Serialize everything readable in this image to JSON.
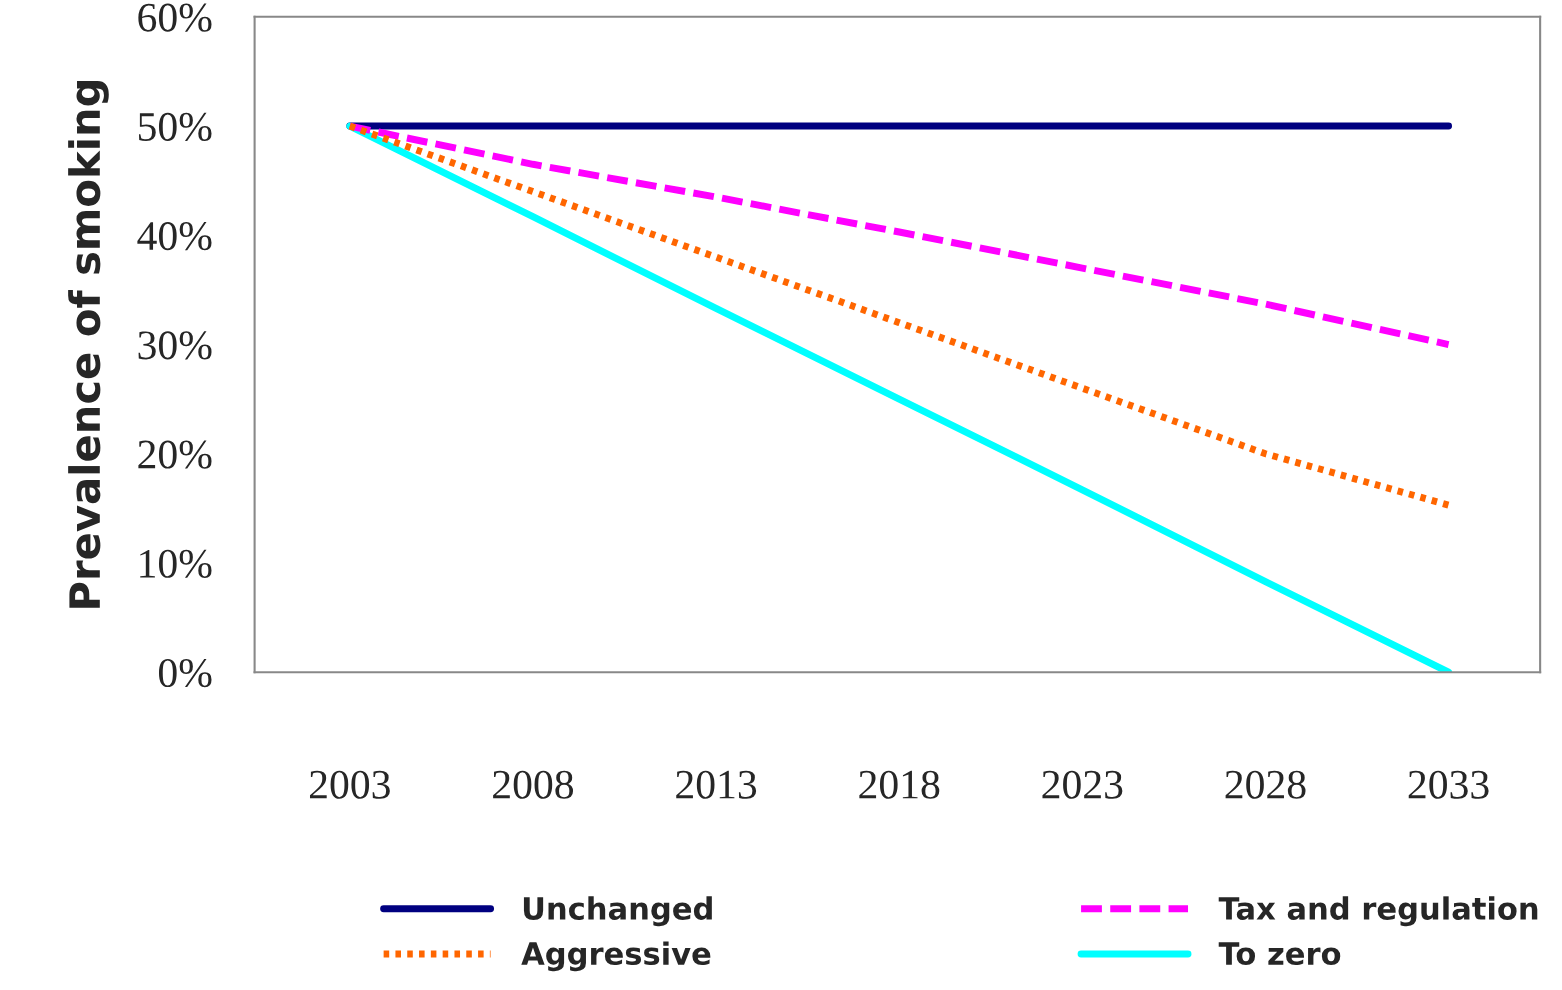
{
  "chart_data": {
    "type": "line",
    "ylabel": "Prevalence of smoking",
    "x": [
      2003,
      2008,
      2013,
      2018,
      2023,
      2028,
      2033
    ],
    "series": [
      {
        "name": "Unchanged",
        "color": "#000080",
        "line_style": "solid",
        "values": [
          50,
          50,
          50,
          50,
          50,
          50,
          50
        ]
      },
      {
        "name": "Aggressive",
        "color": "#ff6600",
        "line_style": "dotted",
        "values": [
          50,
          44,
          38,
          32,
          26,
          20,
          15.3
        ]
      },
      {
        "name": "Tax and regulation",
        "color": "#ff00ff",
        "line_style": "dashed",
        "values": [
          50,
          46.5,
          43.5,
          40.3,
          37,
          33.7,
          30
        ]
      },
      {
        "name": "To zero",
        "color": "#00ffff",
        "line_style": "solid",
        "values": [
          50,
          41.7,
          33.3,
          25,
          16.7,
          8.3,
          0
        ]
      }
    ],
    "xlim": [
      2000.4,
      2035.5
    ],
    "xticks": [
      2003,
      2008,
      2013,
      2018,
      2023,
      2028,
      2033
    ],
    "ylim": [
      0,
      60
    ],
    "yticks": [
      {
        "value": 0,
        "label": "0%"
      },
      {
        "value": 10,
        "label": "10%"
      },
      {
        "value": 20,
        "label": "20%"
      },
      {
        "value": 30,
        "label": "30%"
      },
      {
        "value": 40,
        "label": "40%"
      },
      {
        "value": 50,
        "label": "50%"
      },
      {
        "value": 60,
        "label": "60%"
      }
    ],
    "grid": false,
    "legend": "bottom",
    "marker": "none"
  }
}
